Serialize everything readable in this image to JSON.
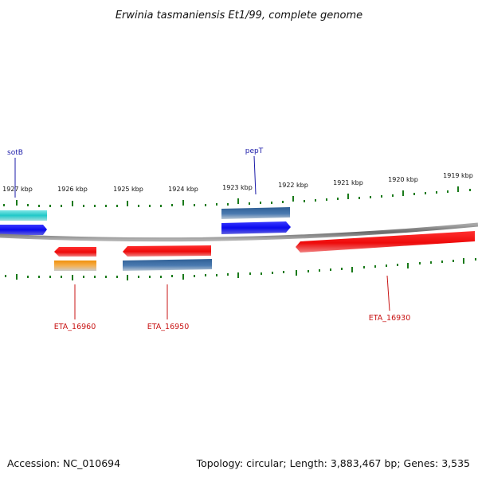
{
  "title": "Erwinia tasmaniensis Et1/99, complete genome",
  "footer": {
    "accession": "Accession: NC_010694",
    "summary": "Topology: circular; Length: 3,883,467 bp; Genes: 3,535"
  },
  "ruler_labels": [
    "1927 kbp",
    "1926 kbp",
    "1925 kbp",
    "1924 kbp",
    "1923 kbp",
    "1922 kbp",
    "1921 kbp",
    "1920 kbp",
    "1919 kbp"
  ],
  "gene_labels": {
    "sotB": "sotB",
    "pepT": "pepT",
    "eta16960": "ETA_16960",
    "eta16950": "ETA_16950",
    "eta16930": "ETA_16930"
  },
  "colors": {
    "backbone": "#808080",
    "tick": "#1a7a1a",
    "cyan_feature": "#20c8c8",
    "blue_feature": "#0a0aee",
    "steel_feature": "#4a7ab0",
    "red_feature": "#ee0a0a",
    "orange_feature": "#f0900a",
    "label_blue": "#1a1aa8",
    "label_red": "#c81414"
  }
}
